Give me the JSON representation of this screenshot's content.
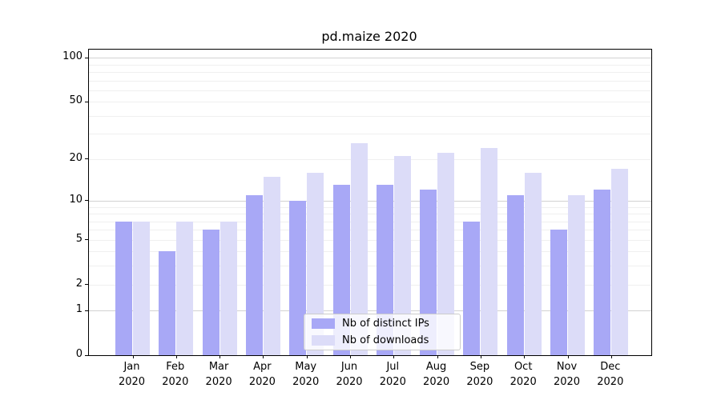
{
  "chart_data": {
    "type": "bar",
    "title": "pd.maize 2020",
    "y_scale": "log1p",
    "ylim": [
      0,
      115
    ],
    "grid": true,
    "legend_position": "bottom-center",
    "x_tick_year": "2020",
    "x_tick_months": [
      "Jan",
      "Feb",
      "Mar",
      "Apr",
      "May",
      "Jun",
      "Jul",
      "Aug",
      "Sep",
      "Oct",
      "Nov",
      "Dec"
    ],
    "categories": [
      "Jan 2020",
      "Feb 2020",
      "Mar 2020",
      "Apr 2020",
      "May 2020",
      "Jun 2020",
      "Jul 2020",
      "Aug 2020",
      "Sep 2020",
      "Oct 2020",
      "Nov 2020",
      "Dec 2020"
    ],
    "y_ticks": [
      0,
      1,
      2,
      5,
      10,
      20,
      50,
      100
    ],
    "y_major_gridlines": [
      1,
      10,
      100
    ],
    "y_minor_gridlines": [
      2,
      3,
      4,
      5,
      6,
      7,
      8,
      9,
      20,
      30,
      40,
      50,
      60,
      70,
      80,
      90
    ],
    "series": [
      {
        "name": "Nb of distinct IPs",
        "color": "#a8a8f6",
        "values": [
          7,
          4,
          6,
          11,
          10,
          13,
          13,
          12,
          7,
          11,
          6,
          12
        ]
      },
      {
        "name": "Nb of downloads",
        "color": "#dcdcf8",
        "values": [
          7,
          7,
          7,
          15,
          16,
          26,
          21,
          22,
          24,
          16,
          11,
          17
        ]
      }
    ],
    "colors": {
      "major_grid": "#d2d2d2",
      "minor_grid": "#f0f0f0",
      "axis": "#000000",
      "background": "#ffffff",
      "text": "#000000"
    }
  }
}
